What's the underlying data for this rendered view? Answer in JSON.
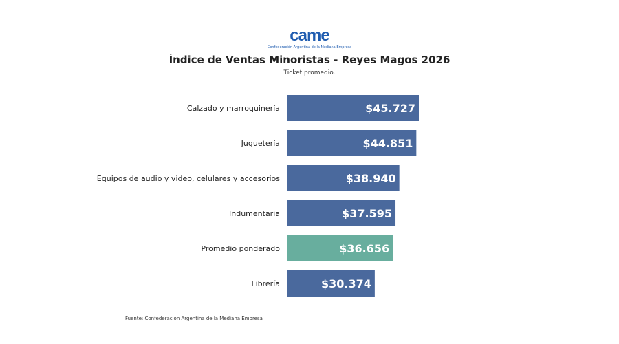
{
  "logo": {
    "mark": "came",
    "subtitle": "Confederación Argentina de la Mediana Empresa"
  },
  "title": "Índice de Ventas Minoristas - Reyes Magos 2026",
  "subtitle": "Ticket promedio.",
  "source": "Fuente: Confederación Argentina de la Mediana Empresa",
  "colors": {
    "bar": "#4a699d",
    "highlight": "#68ae9e"
  },
  "chart_data": {
    "type": "bar",
    "orientation": "horizontal",
    "title": "Índice de Ventas Minoristas - Reyes Magos 2026",
    "subtitle": "Ticket promedio.",
    "categories": [
      "Calzado y marroquinería",
      "Juguetería",
      "Equipos de audio y video, celulares y accesorios",
      "Indumentaria",
      "Promedio ponderado",
      "Librería"
    ],
    "values": [
      45727,
      44851,
      38940,
      37595,
      36656,
      30374
    ],
    "labels": [
      "$45.727",
      "$44.851",
      "$38.940",
      "$37.595",
      "$36.656",
      "$30.374"
    ],
    "highlighted": [
      false,
      false,
      false,
      false,
      true,
      false
    ],
    "xlim": [
      0,
      45727
    ],
    "grid": false
  }
}
